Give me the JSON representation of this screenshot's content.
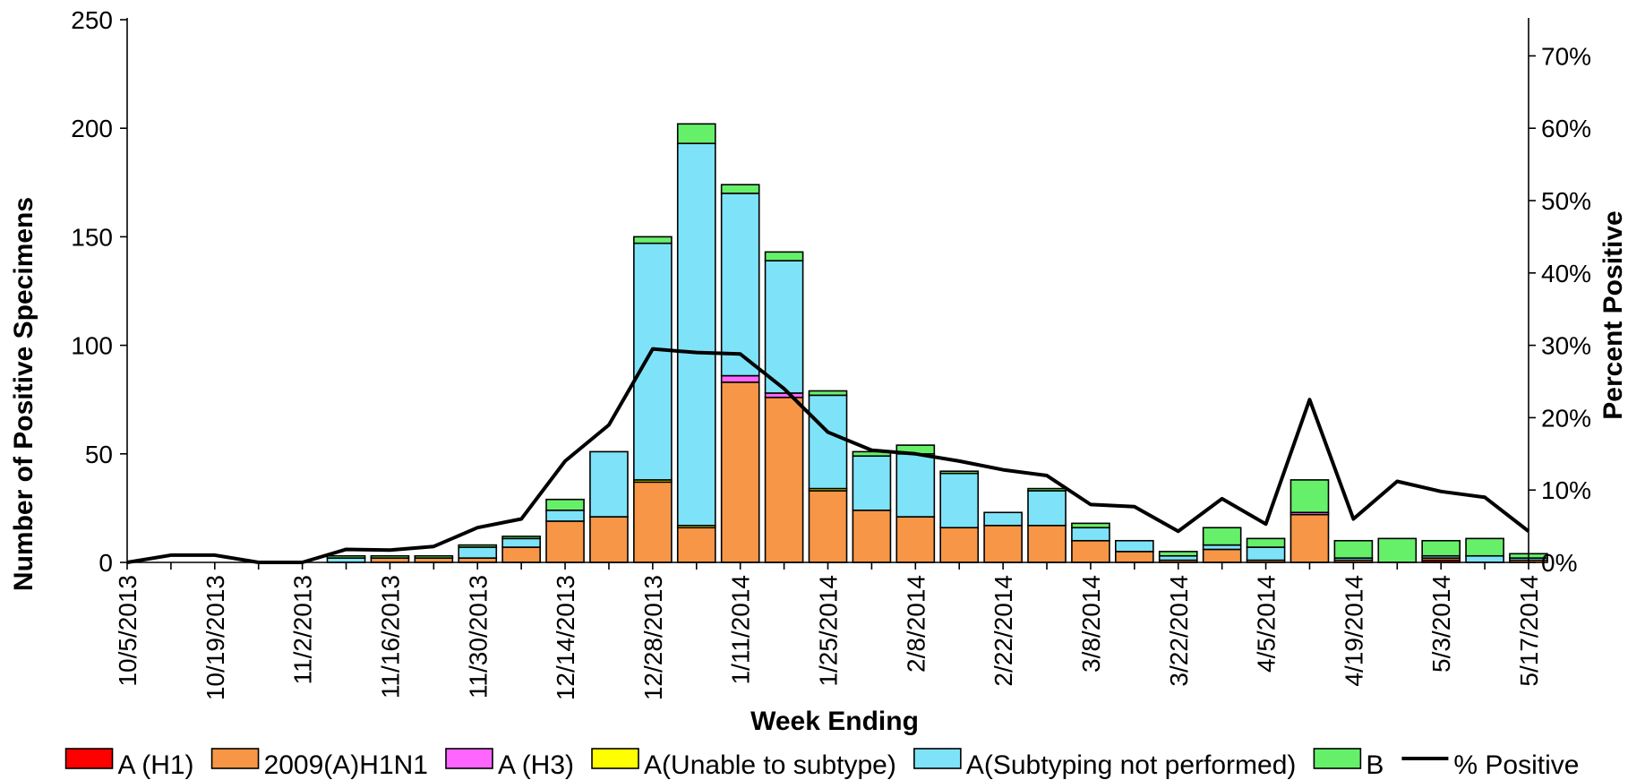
{
  "chart_data": {
    "type": "bar",
    "stacked": true,
    "xlabel": "Week Ending",
    "ylabel": "Number of  Positive Specimens",
    "y2label": "Percent Positive",
    "ylim": [
      0,
      250
    ],
    "yticks": [
      0,
      50,
      100,
      150,
      200,
      250
    ],
    "y2lim": [
      0,
      0.75
    ],
    "y2ticks": [
      "0%",
      "10%",
      "20%",
      "30%",
      "40%",
      "50%",
      "60%",
      "70%"
    ],
    "grid": false,
    "legend_position": "bottom",
    "x_tick_labels": [
      "10/5/2013",
      "10/19/2013",
      "11/2/2013",
      "11/16/2013",
      "11/30/2013",
      "12/14/2013",
      "12/28/2013",
      "1/11/2014",
      "1/25/2014",
      "2/8/2014",
      "2/22/2014",
      "3/8/2014",
      "3/22/2014",
      "4/5/2014",
      "4/19/2014",
      "5/3/2014",
      "5/17/2014"
    ],
    "categories": [
      "10/5/2013",
      "10/12/2013",
      "10/19/2013",
      "10/26/2013",
      "11/2/2013",
      "11/9/2013",
      "11/16/2013",
      "11/23/2013",
      "11/30/2013",
      "12/7/2013",
      "12/14/2013",
      "12/21/2013",
      "12/28/2013",
      "1/4/2014",
      "1/11/2014",
      "1/18/2014",
      "1/25/2014",
      "2/1/2014",
      "2/8/2014",
      "2/15/2014",
      "2/22/2014",
      "3/1/2014",
      "3/8/2014",
      "3/15/2014",
      "3/22/2014",
      "3/29/2014",
      "4/5/2014",
      "4/12/2014",
      "4/19/2014",
      "4/26/2014",
      "5/3/2014",
      "5/10/2014",
      "5/17/2014"
    ],
    "series": [
      {
        "name": "A (H1)",
        "color": "#ff0000",
        "values": [
          0,
          0,
          0,
          0,
          0,
          0,
          0,
          0,
          0,
          0,
          0,
          0,
          0,
          0,
          0,
          0,
          0,
          0,
          0,
          0,
          0,
          0,
          0,
          0,
          0,
          0,
          0,
          0,
          0,
          0,
          1,
          0,
          0
        ]
      },
      {
        "name": "2009(A)H1N1",
        "color": "#f79646",
        "values": [
          0,
          0,
          0,
          0,
          0,
          0,
          2,
          2,
          2,
          7,
          19,
          21,
          37,
          16,
          83,
          76,
          33,
          24,
          21,
          16,
          17,
          17,
          10,
          5,
          1,
          6,
          1,
          22,
          1,
          0,
          1,
          0,
          1
        ]
      },
      {
        "name": "A (H3)",
        "color": "#ff66ff",
        "values": [
          0,
          0,
          0,
          0,
          0,
          0,
          0,
          0,
          0,
          0,
          0,
          0,
          0,
          0,
          3,
          2,
          0,
          0,
          0,
          0,
          0,
          0,
          0,
          0,
          0,
          0,
          0,
          1,
          0,
          0,
          0,
          0,
          0
        ]
      },
      {
        "name": "A(Unable to subtype)",
        "color": "#ffff00",
        "values": [
          0,
          0,
          0,
          0,
          0,
          0,
          0,
          0,
          0,
          0,
          0,
          0,
          1,
          1,
          0,
          0,
          1,
          0,
          0,
          0,
          0,
          0,
          0,
          0,
          0,
          0,
          0,
          0,
          0,
          0,
          0,
          0,
          0
        ]
      },
      {
        "name": "A(Subtyping not performed)",
        "color": "#7ee3f8",
        "values": [
          0,
          0,
          0,
          0,
          0,
          2,
          0,
          0,
          5,
          4,
          5,
          30,
          109,
          176,
          84,
          61,
          43,
          25,
          29,
          25,
          6,
          16,
          6,
          5,
          2,
          2,
          6,
          0,
          1,
          0,
          1,
          3,
          1
        ]
      },
      {
        "name": "B",
        "color": "#66f06a",
        "values": [
          0,
          0,
          0,
          0,
          0,
          1,
          1,
          1,
          1,
          1,
          5,
          0,
          3,
          9,
          4,
          4,
          2,
          2,
          4,
          1,
          0,
          1,
          2,
          0,
          2,
          8,
          4,
          15,
          8,
          11,
          7,
          8,
          2
        ]
      }
    ],
    "line_series": {
      "name": "% Positive",
      "color": "#000000",
      "values": [
        0.0,
        0.01,
        0.01,
        0.0,
        0.0,
        0.018,
        0.017,
        0.022,
        0.048,
        0.06,
        0.14,
        0.19,
        0.295,
        0.29,
        0.288,
        0.24,
        0.18,
        0.155,
        0.15,
        0.14,
        0.128,
        0.12,
        0.08,
        0.077,
        0.043,
        0.088,
        0.053,
        0.225,
        0.06,
        0.112,
        0.098,
        0.09,
        0.043
      ]
    }
  }
}
